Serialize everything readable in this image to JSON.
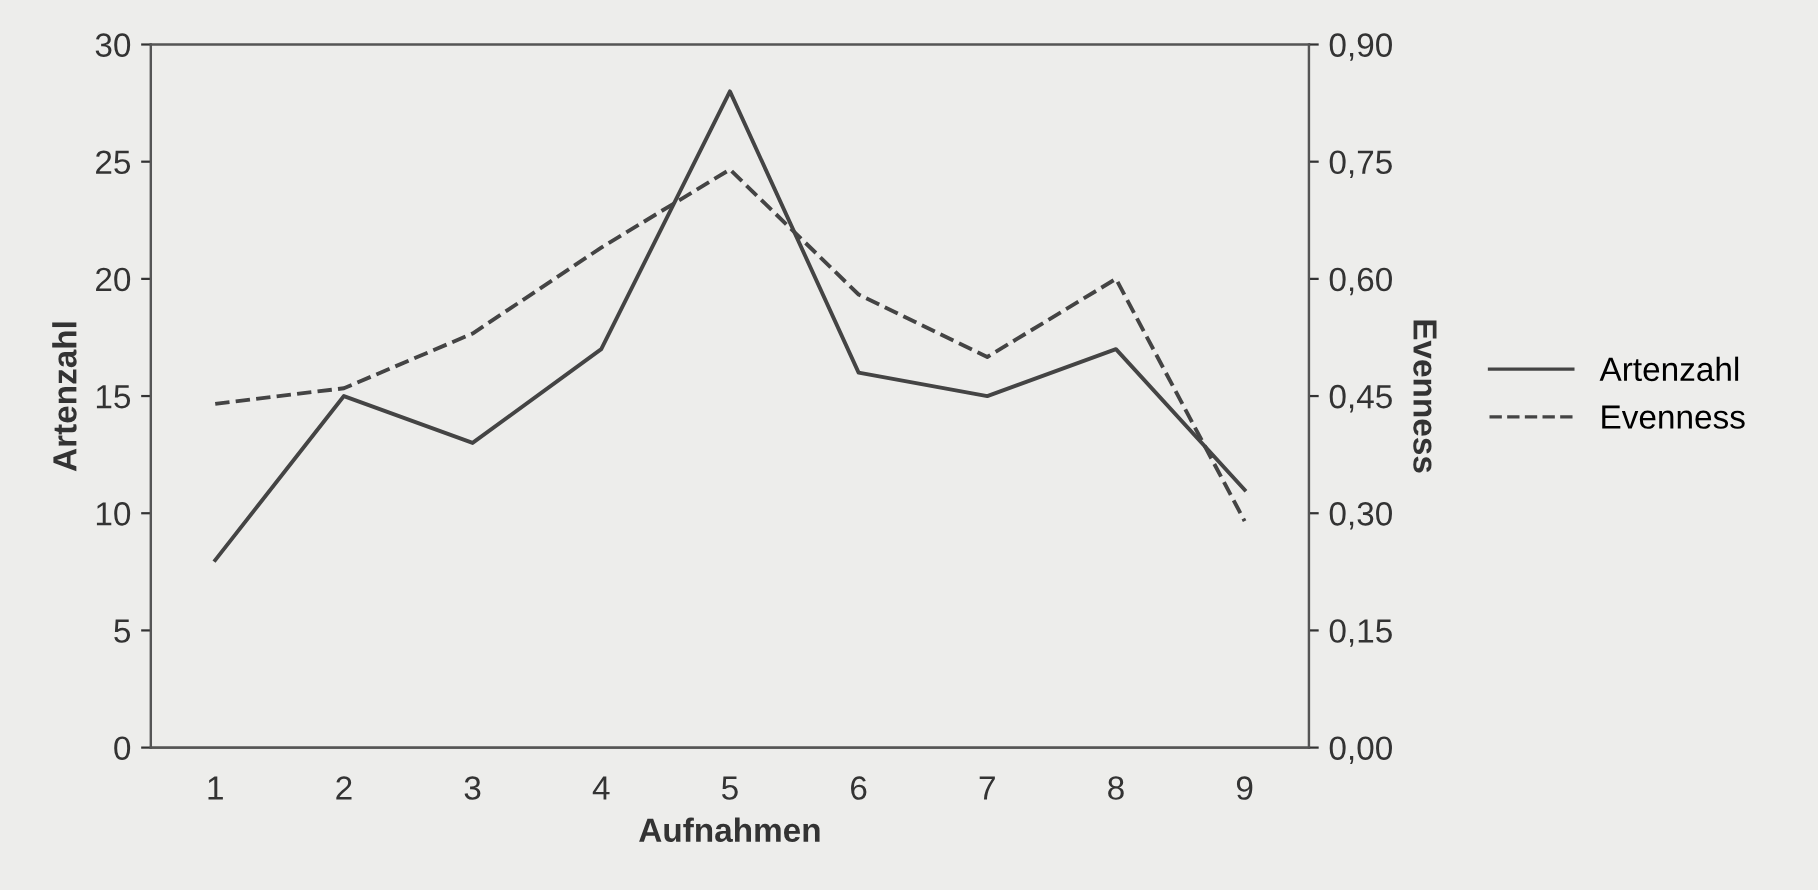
{
  "chart_data": {
    "type": "line",
    "xlabel": "Aufnahmen",
    "ylabel": "Artenzahl",
    "y2label": "Evenness",
    "categories": [
      "1",
      "2",
      "3",
      "4",
      "5",
      "6",
      "7",
      "8",
      "9"
    ],
    "series": [
      {
        "name": "Artenzahl",
        "color": "#444444",
        "line_style": "solid",
        "values": [
          8,
          15,
          13,
          17,
          28,
          16,
          15,
          17,
          11
        ]
      },
      {
        "name": "Evenness",
        "color": "#444444",
        "line_style": "dashed",
        "axis": "y2",
        "values": [
          0.44,
          0.46,
          0.53,
          0.64,
          0.74,
          0.58,
          0.5,
          0.6,
          0.29
        ]
      }
    ],
    "ylim": [
      0,
      30
    ],
    "yticks": [
      0,
      5,
      10,
      15,
      20,
      25,
      30
    ],
    "y2lim": [
      0,
      0.9
    ],
    "y2ticks": [
      {
        "value": 0,
        "label": "0,00"
      },
      {
        "value": 0.15,
        "label": "0,15"
      },
      {
        "value": 0.3,
        "label": "0,30"
      },
      {
        "value": 0.45,
        "label": "0,45"
      },
      {
        "value": 0.6,
        "label": "0,60"
      },
      {
        "value": 0.75,
        "label": "0,75"
      },
      {
        "value": 0.9,
        "label": "0,90"
      }
    ],
    "grid": false,
    "legend": "right",
    "marker": "none"
  }
}
